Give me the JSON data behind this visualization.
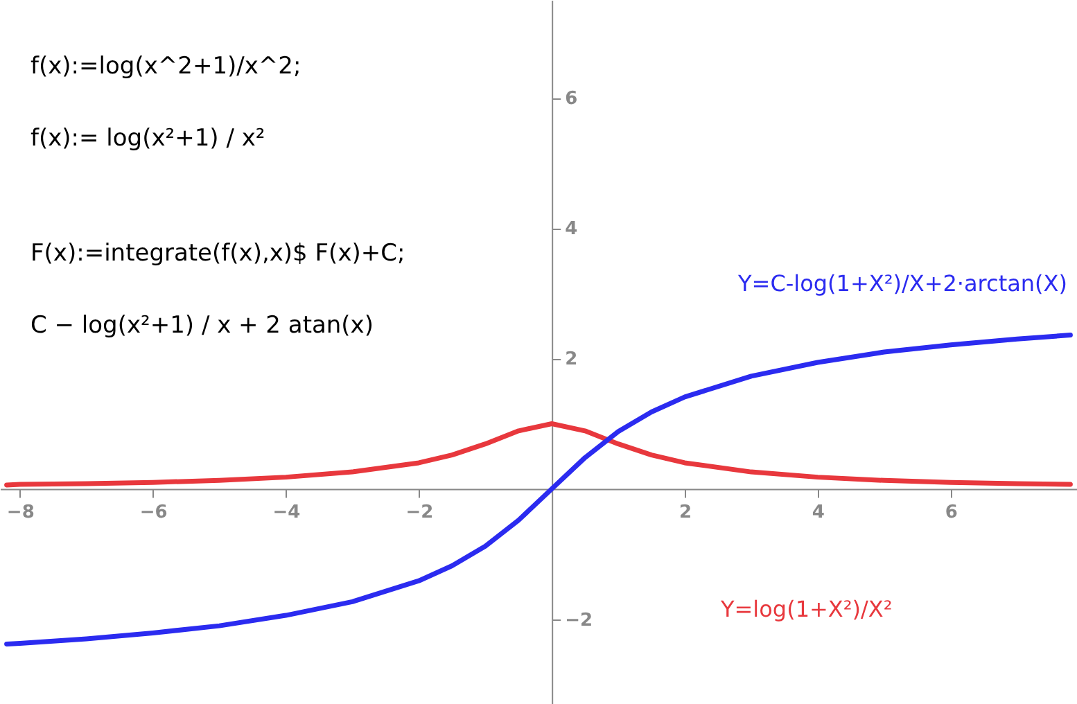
{
  "chart_data": {
    "type": "line",
    "xlim": [
      -8.3,
      7.9
    ],
    "ylim": [
      -3.3,
      7.5
    ],
    "xticks": [
      -8,
      -6,
      -4,
      -2,
      2,
      4,
      6
    ],
    "yticks": [
      -2,
      2,
      4,
      6
    ],
    "grid": false,
    "marker": "none",
    "line_style": "solid",
    "annotations": [
      "f(x):=log(x^2+1)/x^2;",
      "f(x):= log(x²+1) / x²",
      "F(x):=integrate(f(x),x)$ F(x)+C;",
      "C − log(x²+1) / x + 2 atan(x)"
    ],
    "series": [
      {
        "name": "Y=log(1+X²)/X²",
        "color": "#e8383d",
        "x": [
          -8.2,
          -8,
          -7,
          -6,
          -5,
          -4,
          -3,
          -2,
          -1.5,
          -1,
          -0.5,
          0,
          0.5,
          1,
          1.5,
          2,
          3,
          4,
          5,
          6,
          7,
          7.8
        ],
        "values": [
          0.06,
          0.07,
          0.08,
          0.1,
          0.13,
          0.18,
          0.26,
          0.4,
          0.52,
          0.69,
          0.89,
          1,
          0.89,
          0.69,
          0.52,
          0.4,
          0.26,
          0.18,
          0.13,
          0.1,
          0.08,
          0.07
        ]
      },
      {
        "name": "Y=C-log(1+X²)/X+2·arctan(X)",
        "color": "#2b2bf0",
        "x": [
          -8.2,
          -8,
          -7,
          -6,
          -5,
          -4,
          -3,
          -2,
          -1.5,
          -1,
          -0.5,
          0,
          0.5,
          1,
          1.5,
          2,
          3,
          4,
          5,
          6,
          7,
          7.8
        ],
        "values": [
          -2.38,
          -2.37,
          -2.3,
          -2.21,
          -2.1,
          -1.94,
          -1.73,
          -1.41,
          -1.18,
          -0.88,
          -0.48,
          0,
          0.48,
          0.88,
          1.18,
          1.41,
          1.73,
          1.94,
          2.1,
          2.21,
          2.3,
          2.36
        ]
      }
    ]
  }
}
